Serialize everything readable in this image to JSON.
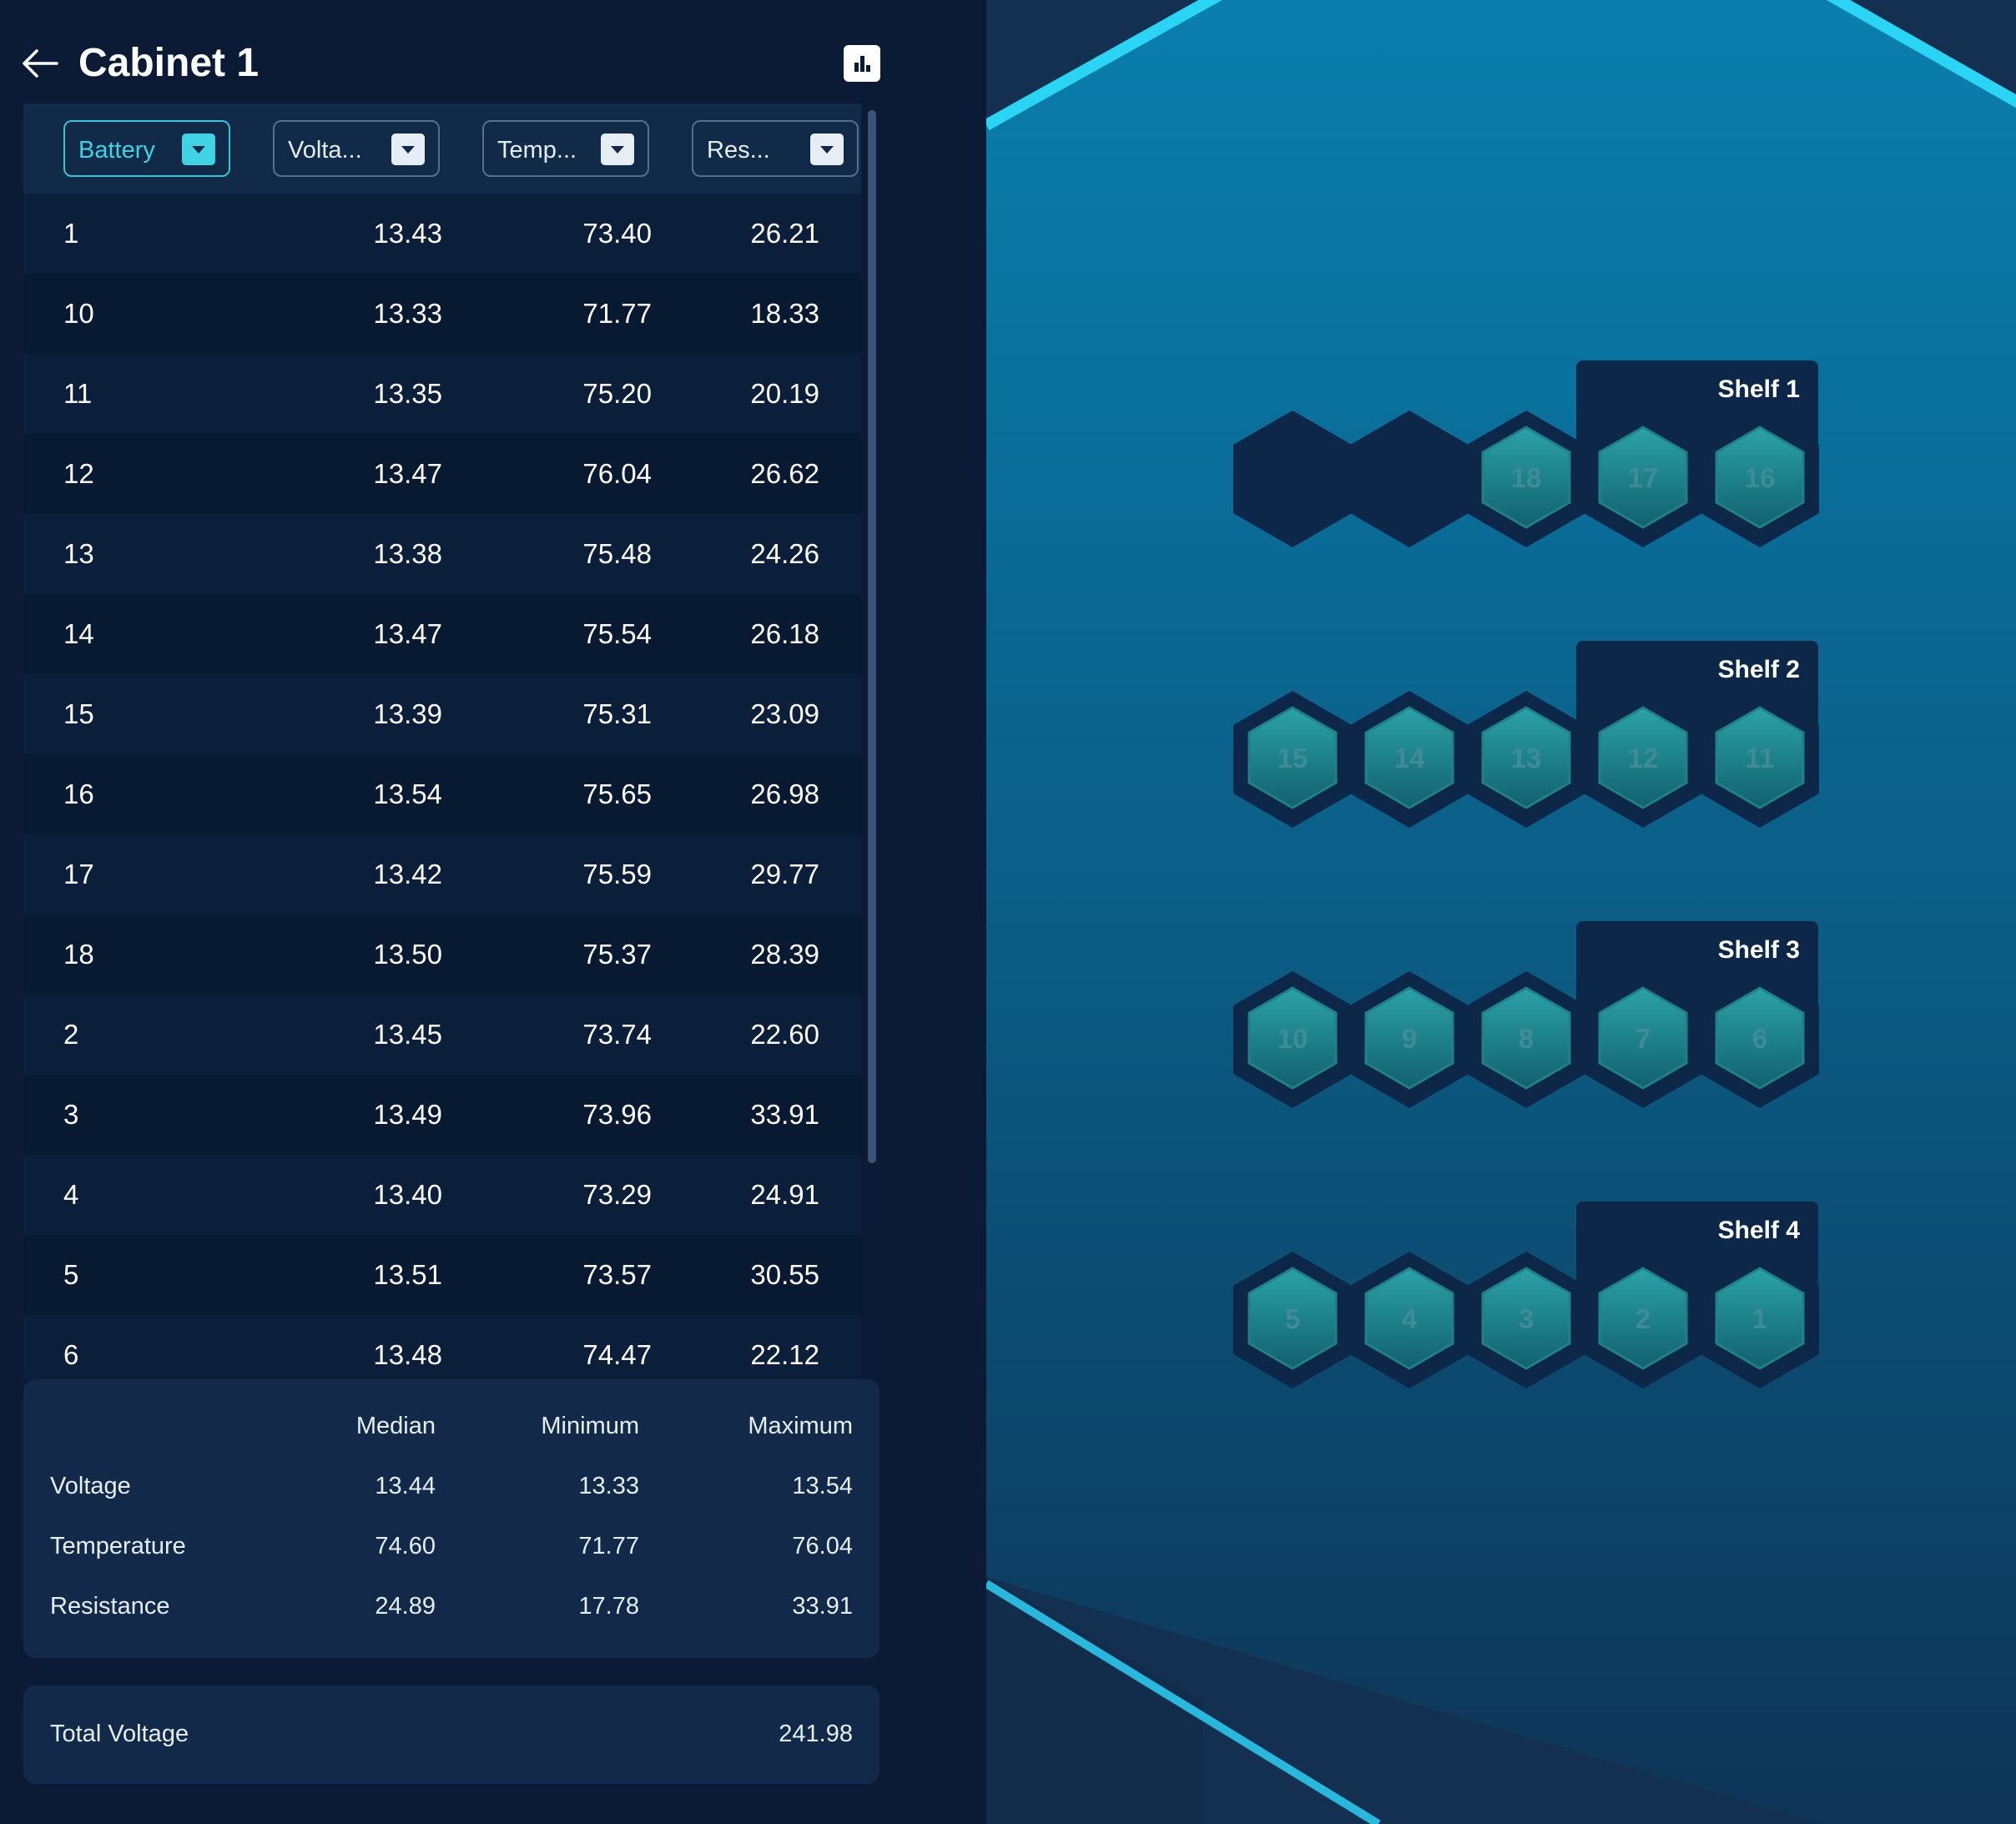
{
  "header": {
    "title": "Cabinet 1"
  },
  "table": {
    "columns": [
      {
        "label": "Battery",
        "active": true
      },
      {
        "label": "Volta...",
        "active": false
      },
      {
        "label": "Temp...",
        "active": false
      },
      {
        "label": "Res...",
        "active": false
      }
    ],
    "rows": [
      {
        "battery": "1",
        "voltage": "13.43",
        "temperature": "73.40",
        "resistance": "26.21"
      },
      {
        "battery": "10",
        "voltage": "13.33",
        "temperature": "71.77",
        "resistance": "18.33"
      },
      {
        "battery": "11",
        "voltage": "13.35",
        "temperature": "75.20",
        "resistance": "20.19"
      },
      {
        "battery": "12",
        "voltage": "13.47",
        "temperature": "76.04",
        "resistance": "26.62"
      },
      {
        "battery": "13",
        "voltage": "13.38",
        "temperature": "75.48",
        "resistance": "24.26"
      },
      {
        "battery": "14",
        "voltage": "13.47",
        "temperature": "75.54",
        "resistance": "26.18"
      },
      {
        "battery": "15",
        "voltage": "13.39",
        "temperature": "75.31",
        "resistance": "23.09"
      },
      {
        "battery": "16",
        "voltage": "13.54",
        "temperature": "75.65",
        "resistance": "26.98"
      },
      {
        "battery": "17",
        "voltage": "13.42",
        "temperature": "75.59",
        "resistance": "29.77"
      },
      {
        "battery": "18",
        "voltage": "13.50",
        "temperature": "75.37",
        "resistance": "28.39"
      },
      {
        "battery": "2",
        "voltage": "13.45",
        "temperature": "73.74",
        "resistance": "22.60"
      },
      {
        "battery": "3",
        "voltage": "13.49",
        "temperature": "73.96",
        "resistance": "33.91"
      },
      {
        "battery": "4",
        "voltage": "13.40",
        "temperature": "73.29",
        "resistance": "24.91"
      },
      {
        "battery": "5",
        "voltage": "13.51",
        "temperature": "73.57",
        "resistance": "30.55"
      },
      {
        "battery": "6",
        "voltage": "13.48",
        "temperature": "74.47",
        "resistance": "22.12"
      }
    ]
  },
  "stats": {
    "headers": [
      "Median",
      "Minimum",
      "Maximum"
    ],
    "rows": [
      {
        "label": "Voltage",
        "median": "13.44",
        "minimum": "13.33",
        "maximum": "13.54"
      },
      {
        "label": "Temperature",
        "median": "74.60",
        "minimum": "71.77",
        "maximum": "76.04"
      },
      {
        "label": "Resistance",
        "median": "24.89",
        "minimum": "17.78",
        "maximum": "33.91"
      }
    ]
  },
  "total": {
    "label": "Total Voltage",
    "value": "241.98"
  },
  "shelves": [
    {
      "label": "Shelf 1",
      "cells": [
        "",
        "",
        "18",
        "17",
        "16"
      ]
    },
    {
      "label": "Shelf 2",
      "cells": [
        "15",
        "14",
        "13",
        "12",
        "11"
      ]
    },
    {
      "label": "Shelf 3",
      "cells": [
        "10",
        "9",
        "8",
        "7",
        "6"
      ]
    },
    {
      "label": "Shelf 4",
      "cells": [
        "5",
        "4",
        "3",
        "2",
        "1"
      ]
    }
  ],
  "colors": {
    "panel_bg": "#0c1b35",
    "accent": "#3fd3e5",
    "cell_fill": "#1e7f8a",
    "scene_glow": "#2ad4f5"
  },
  "icons": {
    "back": "back-arrow-icon",
    "chart": "bar-chart-icon",
    "dropdown": "caret-down-icon"
  }
}
